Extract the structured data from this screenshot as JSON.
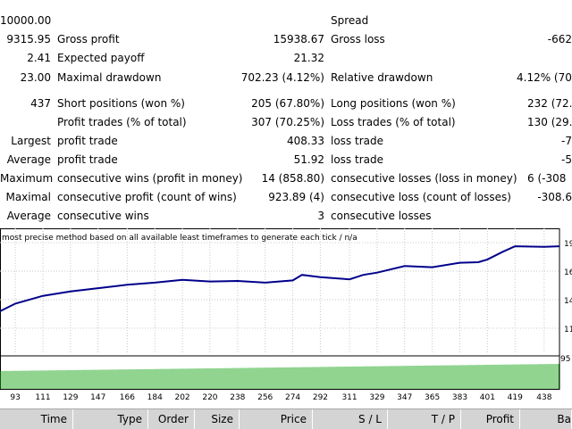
{
  "report": {
    "initial_deposit": "10000.00",
    "spread_label": "Spread",
    "net_profit": "9315.95",
    "gross_profit_label": "Gross profit",
    "gross_profit": "15938.67",
    "gross_loss_label": "Gross loss",
    "gross_loss": "-662",
    "profit_factor": "2.41",
    "expected_payoff_label": "Expected payoff",
    "expected_payoff": "21.32",
    "absolute_drawdown": "23.00",
    "maximal_drawdown_label": "Maximal drawdown",
    "maximal_drawdown": "702.23 (4.12%)",
    "relative_drawdown_label": "Relative drawdown",
    "relative_drawdown": "4.12% (70",
    "total_trades": "437",
    "short_positions_label": "Short positions (won %)",
    "short_positions": "205 (67.80%)",
    "long_positions_label": "Long positions (won %)",
    "long_positions": "232 (72.4",
    "profit_trades_label": "Profit trades (% of total)",
    "profit_trades": "307 (70.25%)",
    "loss_trades_label": "Loss trades (% of total)",
    "loss_trades": "130 (29.7",
    "largest_label": "Largest",
    "largest_profit_trade_label": "profit trade",
    "largest_profit_trade": "408.33",
    "largest_loss_trade_label": "loss trade",
    "largest_loss_trade": "-7",
    "average_label": "Average",
    "average_profit_trade_label": "profit trade",
    "average_profit_trade": "51.92",
    "average_loss_trade_label": "loss trade",
    "average_loss_trade": "-5",
    "maximum_label": "Maximum",
    "max_consec_wins_label": "consecutive wins (profit in money)",
    "max_consec_wins": "14 (858.80)",
    "max_consec_losses_label": "consecutive losses (loss in money)",
    "max_consec_losses": "6 (-308",
    "maximal_label": "Maximal",
    "maximal_consec_profit_label": "consecutive profit (count of wins)",
    "maximal_consec_profit": "923.89 (4)",
    "maximal_consec_loss_label": "consecutive loss (count of losses)",
    "maximal_consec_loss": "-308.6",
    "average2_label": "Average",
    "avg_consec_wins_label": "consecutive wins",
    "avg_consec_wins": "3",
    "avg_consec_losses_label": "consecutive losses"
  },
  "chart_data": {
    "type": "line",
    "title": "most precise method based on all available least timeframes to generate each tick  / n/a",
    "x_ticks": [
      "93",
      "111",
      "129",
      "147",
      "166",
      "184",
      "202",
      "220",
      "238",
      "256",
      "274",
      "292",
      "311",
      "329",
      "347",
      "365",
      "383",
      "401",
      "419",
      "438"
    ],
    "x_range": [
      83,
      448
    ],
    "y_ticks": [
      "19",
      "16",
      "14",
      "11"
    ],
    "y_range": [
      9000,
      20000
    ],
    "series": [
      {
        "x": [
          83,
          93,
          111,
          129,
          147,
          166,
          184,
          202,
          220,
          238,
          256,
          274,
          280,
          292,
          311,
          320,
          329,
          347,
          365,
          383,
          395,
          401,
          411,
          419,
          438,
          448
        ],
        "y": [
          12800,
          13500,
          14200,
          14600,
          14900,
          15200,
          15400,
          15650,
          15500,
          15550,
          15400,
          15600,
          16100,
          15900,
          15700,
          16100,
          16300,
          16900,
          16800,
          17200,
          17250,
          17500,
          18200,
          18700,
          18650,
          18700
        ],
        "color": "#00008b"
      }
    ],
    "volume": {
      "label": "95",
      "bar_color": "#22a822"
    }
  },
  "table_header": {
    "time": "Time",
    "type": "Type",
    "order": "Order",
    "size": "Size",
    "price": "Price",
    "sl": "S / L",
    "tp": "T / P",
    "profit": "Profit",
    "balance": "Ba"
  }
}
